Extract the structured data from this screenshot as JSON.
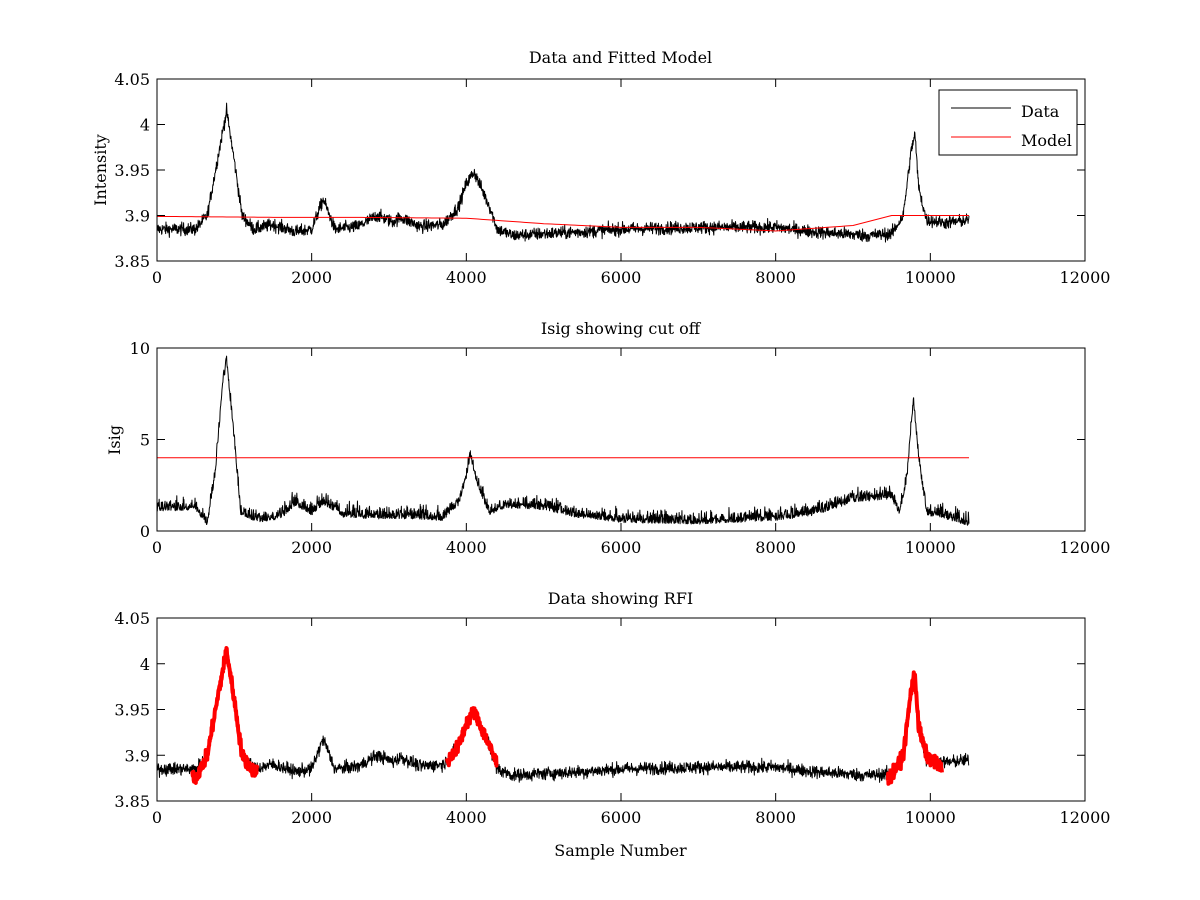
{
  "colors": {
    "data": "#000000",
    "model": "#ff0000",
    "rfi": "#ff0000",
    "axes": "#000000",
    "background": "#ffffff"
  },
  "chart_data": [
    {
      "type": "line",
      "title": "Data and Fitted Model",
      "xlabel": "",
      "ylabel": "Intensity",
      "xlim": [
        0,
        12000
      ],
      "ylim": [
        3.85,
        4.05
      ],
      "xticks": [
        "0",
        "2000",
        "4000",
        "6000",
        "8000",
        "10000",
        "12000"
      ],
      "yticks": [
        "3.85",
        "3.9",
        "3.95",
        "4",
        "4.05"
      ],
      "legend": {
        "position": "top-right",
        "entries": [
          "Data",
          "Model"
        ]
      },
      "series": [
        {
          "name": "Data",
          "color": "#000000",
          "noise": 0.007,
          "x_range": [
            0,
            10500
          ],
          "knots": [
            [
              0,
              3.885
            ],
            [
              500,
              3.885
            ],
            [
              650,
              3.9
            ],
            [
              800,
              3.97
            ],
            [
              900,
              4.015
            ],
            [
              1000,
              3.96
            ],
            [
              1100,
              3.9
            ],
            [
              1250,
              3.885
            ],
            [
              1500,
              3.89
            ],
            [
              1800,
              3.882
            ],
            [
              2000,
              3.885
            ],
            [
              2150,
              3.918
            ],
            [
              2300,
              3.885
            ],
            [
              2600,
              3.888
            ],
            [
              2850,
              3.9
            ],
            [
              3050,
              3.893
            ],
            [
              3150,
              3.898
            ],
            [
              3400,
              3.888
            ],
            [
              3700,
              3.89
            ],
            [
              3900,
              3.91
            ],
            [
              4000,
              3.935
            ],
            [
              4100,
              3.948
            ],
            [
              4300,
              3.91
            ],
            [
              4400,
              3.885
            ],
            [
              4600,
              3.878
            ],
            [
              5000,
              3.88
            ],
            [
              5500,
              3.882
            ],
            [
              6000,
              3.885
            ],
            [
              7000,
              3.887
            ],
            [
              8000,
              3.887
            ],
            [
              8500,
              3.882
            ],
            [
              9200,
              3.878
            ],
            [
              9500,
              3.88
            ],
            [
              9650,
              3.9
            ],
            [
              9750,
              3.97
            ],
            [
              9800,
              3.99
            ],
            [
              9850,
              3.93
            ],
            [
              9950,
              3.895
            ],
            [
              10200,
              3.892
            ],
            [
              10500,
              3.895
            ]
          ]
        },
        {
          "name": "Model",
          "color": "#ff0000",
          "noise": 0,
          "x_range": [
            0,
            10500
          ],
          "knots": [
            [
              0,
              3.899
            ],
            [
              1500,
              3.898
            ],
            [
              2500,
              3.898
            ],
            [
              4000,
              3.897
            ],
            [
              5000,
              3.891
            ],
            [
              6000,
              3.887
            ],
            [
              7000,
              3.887
            ],
            [
              8000,
              3.883
            ],
            [
              9000,
              3.889
            ],
            [
              9500,
              3.9
            ],
            [
              10500,
              3.9
            ]
          ]
        }
      ]
    },
    {
      "type": "line",
      "title": "Isig showing cut off",
      "xlabel": "",
      "ylabel": "Isig",
      "xlim": [
        0,
        12000
      ],
      "ylim": [
        0,
        10
      ],
      "xticks": [
        "0",
        "2000",
        "4000",
        "6000",
        "8000",
        "10000",
        "12000"
      ],
      "yticks": [
        "0",
        "5",
        "10"
      ],
      "series": [
        {
          "color": "#000000",
          "noise": 0.7,
          "x_range": [
            0,
            10500
          ],
          "knots": [
            [
              0,
              1.2
            ],
            [
              500,
              1.3
            ],
            [
              650,
              0.4
            ],
            [
              750,
              3
            ],
            [
              850,
              8
            ],
            [
              900,
              9.3
            ],
            [
              1000,
              5
            ],
            [
              1080,
              1
            ],
            [
              1300,
              0.6
            ],
            [
              1600,
              0.8
            ],
            [
              1800,
              1.5
            ],
            [
              2000,
              1
            ],
            [
              2150,
              1.6
            ],
            [
              2400,
              0.9
            ],
            [
              2800,
              0.8
            ],
            [
              3200,
              0.8
            ],
            [
              3700,
              0.7
            ],
            [
              3900,
              1.5
            ],
            [
              4000,
              3
            ],
            [
              4050,
              4.2
            ],
            [
              4150,
              2.5
            ],
            [
              4300,
              1
            ],
            [
              4500,
              1.4
            ],
            [
              5000,
              1.3
            ],
            [
              5400,
              0.9
            ],
            [
              6000,
              0.6
            ],
            [
              7000,
              0.5
            ],
            [
              8000,
              0.7
            ],
            [
              8500,
              1
            ],
            [
              9000,
              1.7
            ],
            [
              9500,
              1.9
            ],
            [
              9600,
              1
            ],
            [
              9700,
              3
            ],
            [
              9780,
              7.2
            ],
            [
              9850,
              4
            ],
            [
              9950,
              1
            ],
            [
              10200,
              0.8
            ],
            [
              10500,
              0.4
            ]
          ]
        },
        {
          "color": "#ff0000",
          "noise": 0,
          "x_range": [
            0,
            10500
          ],
          "knots": [
            [
              0,
              4
            ],
            [
              10500,
              4
            ]
          ]
        }
      ]
    },
    {
      "type": "line",
      "title": "Data showing RFI",
      "xlabel": "Sample Number",
      "ylabel": "",
      "xlim": [
        0,
        12000
      ],
      "ylim": [
        3.85,
        4.05
      ],
      "xticks": [
        "0",
        "2000",
        "4000",
        "6000",
        "8000",
        "10000",
        "12000"
      ],
      "yticks": [
        "3.85",
        "3.9",
        "3.95",
        "4",
        "4.05"
      ],
      "series": [
        {
          "color": "#000000",
          "noise": 0.007,
          "x_range": [
            0,
            10500
          ],
          "knots": [
            [
              0,
              3.885
            ],
            [
              500,
              3.885
            ],
            [
              650,
              3.9
            ],
            [
              800,
              3.97
            ],
            [
              900,
              4.015
            ],
            [
              1000,
              3.96
            ],
            [
              1100,
              3.9
            ],
            [
              1250,
              3.885
            ],
            [
              1500,
              3.89
            ],
            [
              1800,
              3.882
            ],
            [
              2000,
              3.885
            ],
            [
              2150,
              3.918
            ],
            [
              2300,
              3.885
            ],
            [
              2600,
              3.888
            ],
            [
              2850,
              3.9
            ],
            [
              3050,
              3.893
            ],
            [
              3150,
              3.898
            ],
            [
              3400,
              3.888
            ],
            [
              3700,
              3.89
            ],
            [
              3900,
              3.91
            ],
            [
              4000,
              3.935
            ],
            [
              4100,
              3.948
            ],
            [
              4300,
              3.91
            ],
            [
              4400,
              3.885
            ],
            [
              4600,
              3.878
            ],
            [
              5000,
              3.88
            ],
            [
              5500,
              3.882
            ],
            [
              6000,
              3.885
            ],
            [
              7000,
              3.887
            ],
            [
              8000,
              3.887
            ],
            [
              8500,
              3.882
            ],
            [
              9200,
              3.878
            ],
            [
              9500,
              3.88
            ],
            [
              9650,
              3.9
            ],
            [
              9750,
              3.97
            ],
            [
              9800,
              3.99
            ],
            [
              9850,
              3.93
            ],
            [
              9950,
              3.895
            ],
            [
              10200,
              3.892
            ],
            [
              10500,
              3.895
            ]
          ]
        },
        {
          "color": "#ff0000",
          "marker": "point",
          "noise": 0.007,
          "segments": [
            [
              450,
              1300
            ],
            [
              3750,
              4400
            ],
            [
              9450,
              10150
            ]
          ],
          "knots": [
            [
              450,
              3.88
            ],
            [
              500,
              3.875
            ],
            [
              650,
              3.9
            ],
            [
              800,
              3.97
            ],
            [
              900,
              4.015
            ],
            [
              1000,
              3.96
            ],
            [
              1100,
              3.9
            ],
            [
              1250,
              3.882
            ],
            [
              1300,
              3.885
            ],
            [
              3750,
              3.893
            ],
            [
              3900,
              3.91
            ],
            [
              4000,
              3.935
            ],
            [
              4100,
              3.948
            ],
            [
              4300,
              3.91
            ],
            [
              4400,
              3.89
            ],
            [
              9450,
              3.875
            ],
            [
              9500,
              3.878
            ],
            [
              9650,
              3.9
            ],
            [
              9750,
              3.97
            ],
            [
              9800,
              3.99
            ],
            [
              9850,
              3.93
            ],
            [
              9950,
              3.9
            ],
            [
              10150,
              3.885
            ]
          ]
        }
      ]
    }
  ]
}
